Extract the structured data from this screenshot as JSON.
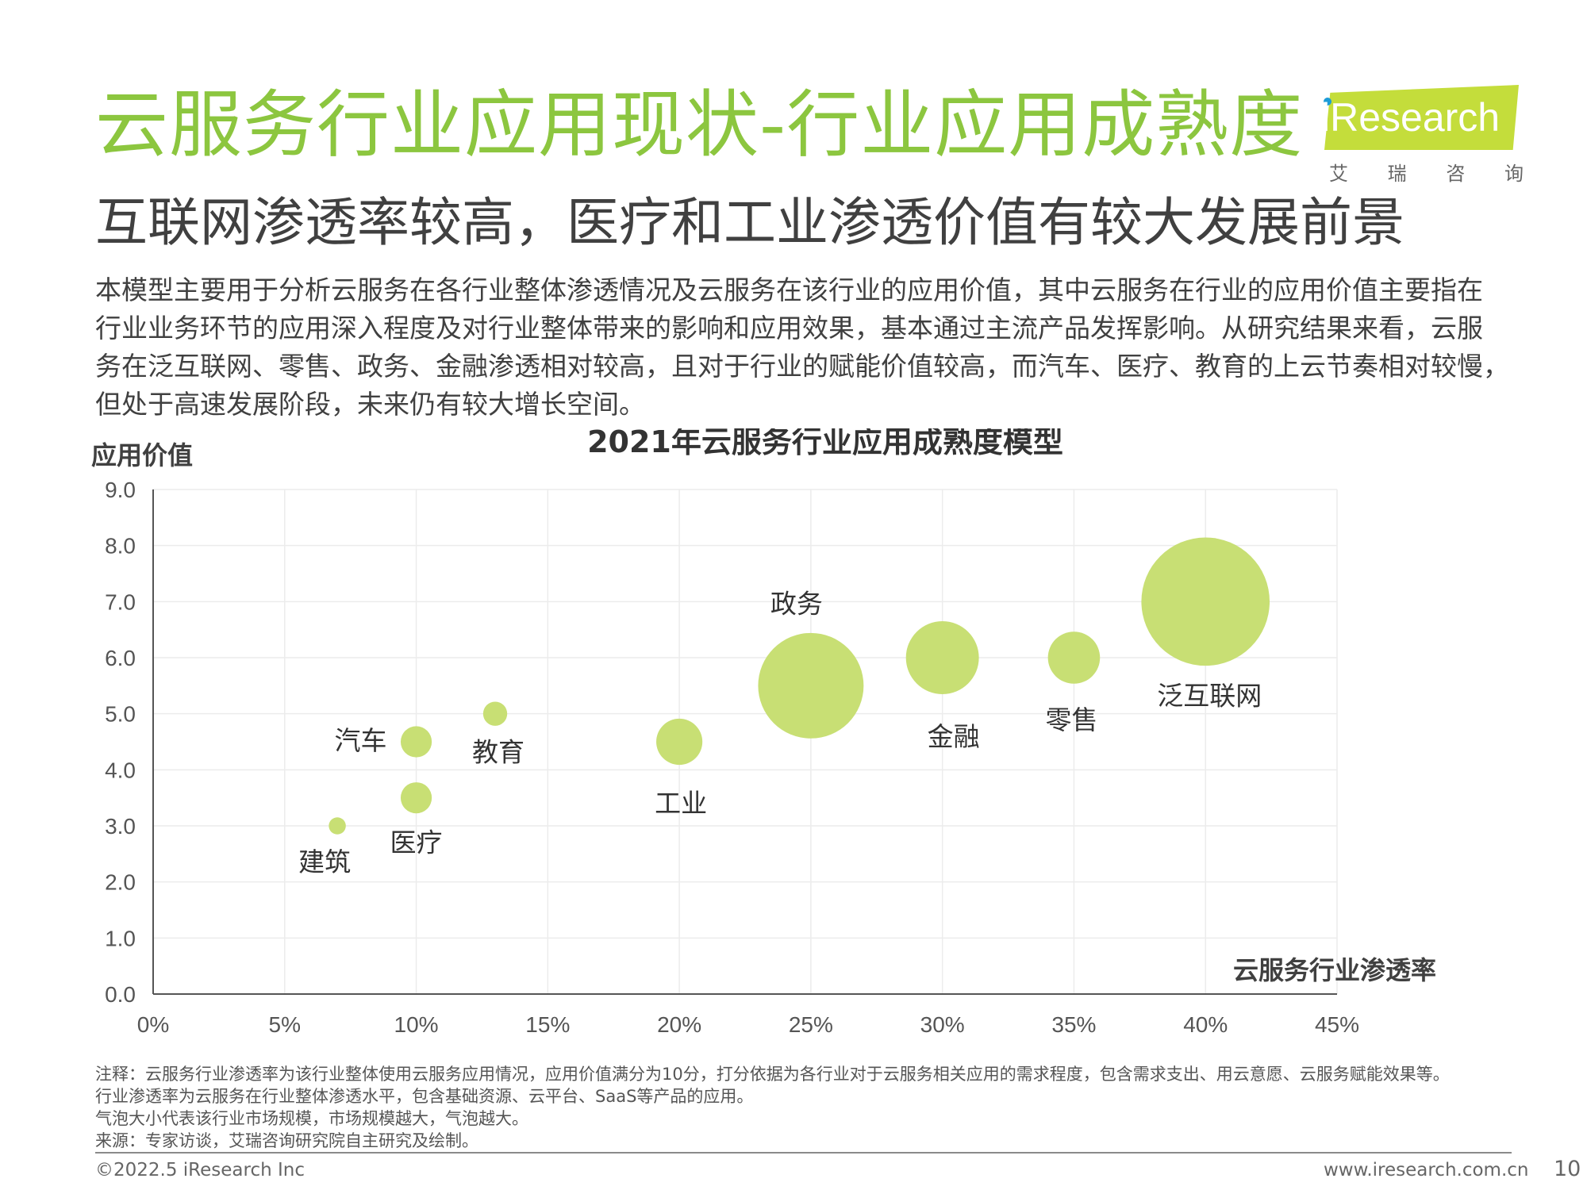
{
  "header": {
    "title": "云服务行业应用现状-行业应用成熟度",
    "subtitle": "互联网渗透率较高，医疗和工业渗透价值有较大发展前景"
  },
  "logo": {
    "brand": "iResearch",
    "sub": [
      "艾",
      "瑞",
      "咨",
      "询"
    ]
  },
  "intro": [
    "本模型主要用于分析云服务在各行业整体渗透情况及云服务在该行业的应用价值，其中云服务在行业的应用价值主要指在",
    "行业业务环节的应用深入程度及对行业整体带来的影响和应用效果，基本通过主流产品发挥影响。从研究结果来看，云服",
    "务在泛互联网、零售、政务、金融渗透相对较高，且对于行业的赋能价值较高，而汽车、医疗、教育的上云节奏相对较慢，",
    "但处于高速发展阶段，未来仍有较大增长空间。"
  ],
  "chart_data": {
    "type": "scatter",
    "title": "2021年云服务行业应用成熟度模型",
    "xlabel": "云服务行业渗透率",
    "ylabel": "应用价值",
    "xlim": [
      0,
      45
    ],
    "ylim": [
      0,
      9
    ],
    "x_ticks": [
      "0%",
      "5%",
      "10%",
      "15%",
      "20%",
      "25%",
      "30%",
      "35%",
      "40%",
      "45%"
    ],
    "y_ticks": [
      "0.0",
      "1.0",
      "2.0",
      "3.0",
      "4.0",
      "5.0",
      "6.0",
      "7.0",
      "8.0",
      "9.0"
    ],
    "grid": true,
    "bubble_color": "#c8df74",
    "points": [
      {
        "label": "建筑",
        "x": 7,
        "y": 3.0,
        "size": 0.3
      },
      {
        "label": "医疗",
        "x": 10,
        "y": 3.5,
        "size": 1.0
      },
      {
        "label": "汽车",
        "x": 10,
        "y": 4.5,
        "size": 1.0
      },
      {
        "label": "教育",
        "x": 13,
        "y": 5.0,
        "size": 0.6
      },
      {
        "label": "工业",
        "x": 20,
        "y": 4.5,
        "size": 2.2
      },
      {
        "label": "政务",
        "x": 25,
        "y": 5.5,
        "size": 11.5
      },
      {
        "label": "金融",
        "x": 30,
        "y": 6.0,
        "size": 5.5
      },
      {
        "label": "零售",
        "x": 35,
        "y": 6.0,
        "size": 2.8
      },
      {
        "label": "泛互联网",
        "x": 40,
        "y": 7.0,
        "size": 17.0
      }
    ]
  },
  "notes": [
    "注释：云服务行业渗透率为该行业整体使用云服务应用情况，应用价值满分为10分，打分依据为各行业对于云服务相关应用的需求程度，包含需求支出、用云意愿、云服务赋能效果等。",
    "行业渗透率为云服务在行业整体渗透水平，包含基础资源、云平台、SaaS等产品的应用。",
    "气泡大小代表该行业市场规模，市场规模越大，气泡越大。",
    "来源：专家访谈，艾瑞咨询研究院自主研究及绘制。"
  ],
  "footer": {
    "copyright": "©2022.5 iResearch Inc",
    "site": "www.iresearch.com.cn",
    "page": "10"
  }
}
